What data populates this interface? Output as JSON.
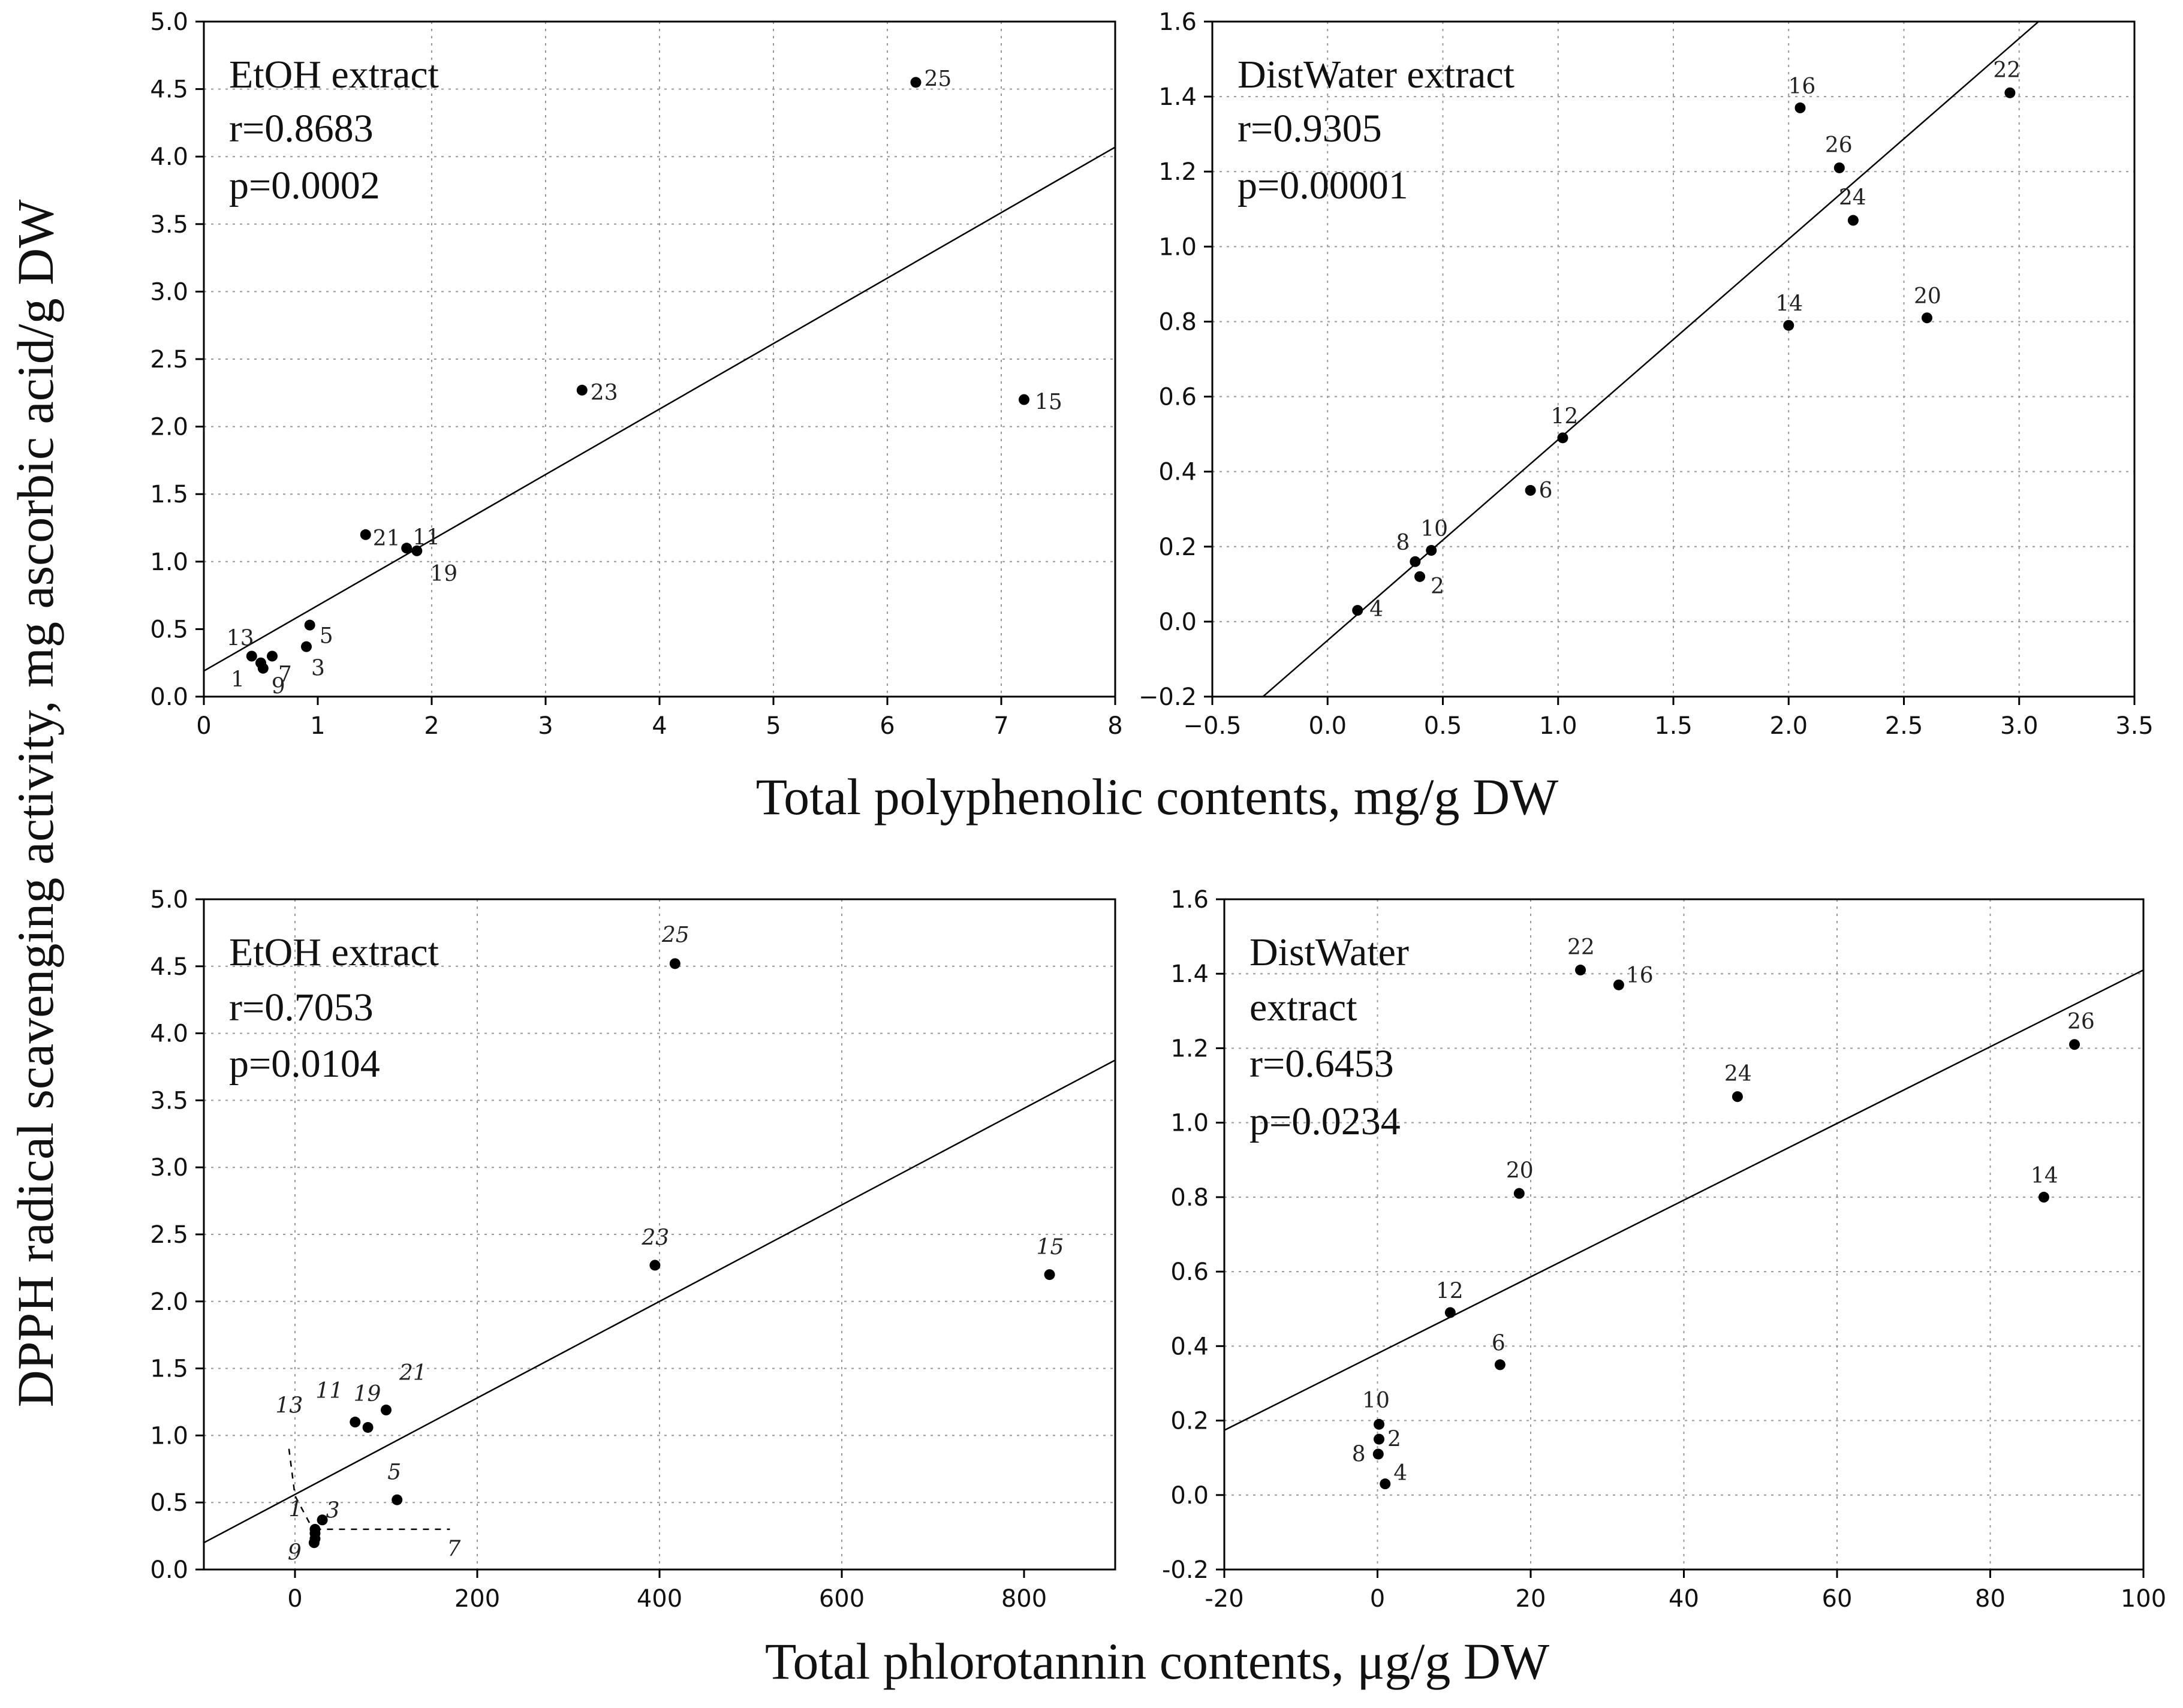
{
  "figure": {
    "y_label": "DPPH radical scavenging activity, mg ascorbic acid/g DW",
    "x_label_top": "Total polyphenolic contents, mg/g DW",
    "x_label_bottom": "Total phlorotannin contents, μg/g DW"
  },
  "chart_data": [
    {
      "id": "A",
      "type": "scatter",
      "title": "EtOH extract",
      "annotations": [
        "EtOH extract",
        "r=0.8683",
        "p=0.0002"
      ],
      "xlim": [
        0,
        8
      ],
      "ylim": [
        0,
        5
      ],
      "xticks": [
        0,
        1,
        2,
        3,
        4,
        5,
        6,
        7,
        8
      ],
      "xtick_labels": [
        "0",
        "1",
        "2",
        "3",
        "4",
        "5",
        "6",
        "7",
        "8"
      ],
      "yticks": [
        0,
        0.5,
        1,
        1.5,
        2,
        2.5,
        3,
        3.5,
        4,
        4.5,
        5
      ],
      "ytick_labels": [
        "0.0",
        "0.5",
        "1.0",
        "1.5",
        "2.0",
        "2.5",
        "3.0",
        "3.5",
        "4.0",
        "4.5",
        "5.0"
      ],
      "points": [
        {
          "label": "1",
          "x": 0.5,
          "y": 0.25
        },
        {
          "label": "3",
          "x": 0.9,
          "y": 0.37
        },
        {
          "label": "5",
          "x": 0.93,
          "y": 0.53
        },
        {
          "label": "7",
          "x": 0.6,
          "y": 0.3
        },
        {
          "label": "9",
          "x": 0.52,
          "y": 0.21
        },
        {
          "label": "11",
          "x": 1.78,
          "y": 1.1
        },
        {
          "label": "13",
          "x": 0.42,
          "y": 0.3
        },
        {
          "label": "15",
          "x": 7.2,
          "y": 2.2
        },
        {
          "label": "19",
          "x": 1.87,
          "y": 1.08
        },
        {
          "label": "21",
          "x": 1.42,
          "y": 1.2
        },
        {
          "label": "23",
          "x": 3.32,
          "y": 2.27
        },
        {
          "label": "25",
          "x": 6.25,
          "y": 4.55
        }
      ],
      "regression": {
        "slope": 0.485,
        "intercept": 0.19
      }
    },
    {
      "id": "B",
      "type": "scatter",
      "title": "DistWater extract",
      "annotations": [
        "DistWater extract",
        "r=0.9305",
        "p=0.00001"
      ],
      "xlim": [
        -0.5,
        3.5
      ],
      "ylim": [
        -0.2,
        1.6
      ],
      "xticks": [
        -0.5,
        0,
        0.5,
        1,
        1.5,
        2,
        2.5,
        3,
        3.5
      ],
      "xtick_labels": [
        "−0.5",
        "0.0",
        "0.5",
        "1.0",
        "1.5",
        "2.0",
        "2.5",
        "3.0",
        "3.5"
      ],
      "yticks": [
        -0.2,
        0,
        0.2,
        0.4,
        0.6,
        0.8,
        1,
        1.2,
        1.4,
        1.6
      ],
      "ytick_labels": [
        "−0.2",
        "0.0",
        "0.2",
        "0.4",
        "0.6",
        "0.8",
        "1.0",
        "1.2",
        "1.4",
        "1.6"
      ],
      "points": [
        {
          "label": "2",
          "x": 0.4,
          "y": 0.12
        },
        {
          "label": "4",
          "x": 0.13,
          "y": 0.03
        },
        {
          "label": "6",
          "x": 0.88,
          "y": 0.35
        },
        {
          "label": "8",
          "x": 0.38,
          "y": 0.16
        },
        {
          "label": "10",
          "x": 0.45,
          "y": 0.19
        },
        {
          "label": "12",
          "x": 1.02,
          "y": 0.49
        },
        {
          "label": "14",
          "x": 2.0,
          "y": 0.79
        },
        {
          "label": "16",
          "x": 2.05,
          "y": 1.37
        },
        {
          "label": "20",
          "x": 2.6,
          "y": 0.81
        },
        {
          "label": "22",
          "x": 2.96,
          "y": 1.41
        },
        {
          "label": "24",
          "x": 2.28,
          "y": 1.07
        },
        {
          "label": "26",
          "x": 2.22,
          "y": 1.21
        }
      ],
      "regression": {
        "slope": 0.535,
        "intercept": -0.05
      }
    },
    {
      "id": "C",
      "type": "scatter",
      "title": "EtOH extract",
      "annotations": [
        "EtOH extract",
        "r=0.7053",
        "p=0.0104"
      ],
      "xlim": [
        -100,
        900
      ],
      "ylim": [
        0,
        5
      ],
      "xticks": [
        0,
        200,
        400,
        600,
        800
      ],
      "xtick_labels": [
        "0",
        "200",
        "400",
        "600",
        "800"
      ],
      "yticks": [
        0,
        0.5,
        1,
        1.5,
        2,
        2.5,
        3,
        3.5,
        4,
        4.5,
        5
      ],
      "ytick_labels": [
        "0.0",
        "0.5",
        "1.0",
        "1.5",
        "2.0",
        "2.5",
        "3.0",
        "3.5",
        "4.0",
        "4.5",
        "5.0"
      ],
      "points": [
        {
          "label": "1",
          "x": 22,
          "y": 0.27
        },
        {
          "label": "3",
          "x": 30,
          "y": 0.37
        },
        {
          "label": "5",
          "x": 112,
          "y": 0.52
        },
        {
          "label": "7",
          "x": 22,
          "y": 0.3
        },
        {
          "label": "9",
          "x": 21,
          "y": 0.2
        },
        {
          "label": "11",
          "x": 66,
          "y": 1.1
        },
        {
          "label": "13",
          "x": 22,
          "y": 0.23
        },
        {
          "label": "15",
          "x": 828,
          "y": 2.2
        },
        {
          "label": "19",
          "x": 80,
          "y": 1.06
        },
        {
          "label": "21",
          "x": 100,
          "y": 1.19
        },
        {
          "label": "23",
          "x": 395,
          "y": 2.27
        },
        {
          "label": "25",
          "x": 417,
          "y": 4.52
        }
      ],
      "regression": {
        "slope": 0.0036,
        "intercept": 0.56
      }
    },
    {
      "id": "D",
      "type": "scatter",
      "title": "DistWater extract",
      "annotations": [
        "DistWater",
        "extract",
        "r=0.6453",
        "p=0.0234"
      ],
      "xlim": [
        -20,
        100
      ],
      "ylim": [
        -0.2,
        1.6
      ],
      "xticks": [
        -20,
        0,
        20,
        40,
        60,
        80,
        100
      ],
      "xtick_labels": [
        "-20",
        "0",
        "20",
        "40",
        "60",
        "80",
        "100"
      ],
      "yticks": [
        -0.2,
        0,
        0.2,
        0.4,
        0.6,
        0.8,
        1,
        1.2,
        1.4,
        1.6
      ],
      "ytick_labels": [
        "-0.2",
        "0.0",
        "0.2",
        "0.4",
        "0.6",
        "0.8",
        "1.0",
        "1.2",
        "1.4",
        "1.6"
      ],
      "points": [
        {
          "label": "2",
          "x": 0.2,
          "y": 0.15
        },
        {
          "label": "4",
          "x": 1.0,
          "y": 0.03
        },
        {
          "label": "6",
          "x": 16,
          "y": 0.35
        },
        {
          "label": "8",
          "x": 0.1,
          "y": 0.11
        },
        {
          "label": "10",
          "x": 0.2,
          "y": 0.19
        },
        {
          "label": "12",
          "x": 9.5,
          "y": 0.49
        },
        {
          "label": "14",
          "x": 87,
          "y": 0.8
        },
        {
          "label": "16",
          "x": 31.5,
          "y": 1.37
        },
        {
          "label": "20",
          "x": 18.5,
          "y": 0.81
        },
        {
          "label": "22",
          "x": 26.5,
          "y": 1.41
        },
        {
          "label": "24",
          "x": 47,
          "y": 1.07
        },
        {
          "label": "26",
          "x": 91,
          "y": 1.21
        }
      ],
      "regression": {
        "slope": 0.0103,
        "intercept": 0.38
      }
    }
  ]
}
